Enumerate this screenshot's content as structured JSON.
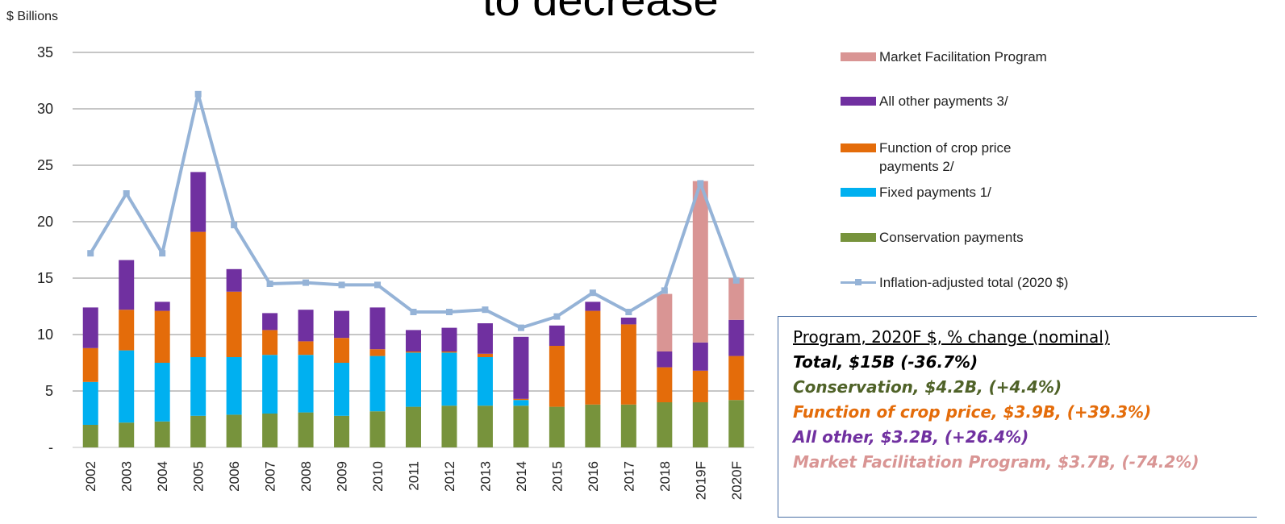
{
  "page": {
    "title": "to decrease",
    "unit_label": "$ Billions"
  },
  "colors": {
    "conservation": "#77933c",
    "fixed": "#00b0f0",
    "function_crop_price": "#e46c0a",
    "all_other": "#7030a0",
    "mfp": "#d99594",
    "inflation_line": "#95b3d7",
    "box_border": "#4a6fa5"
  },
  "chart_data": {
    "type": "bar",
    "stacked": true,
    "categories": [
      "2002",
      "2003",
      "2004",
      "2005",
      "2006",
      "2007",
      "2008",
      "2009",
      "2010",
      "2011",
      "2012",
      "2013",
      "2014",
      "2015",
      "2016",
      "2017",
      "2018",
      "2019F",
      "2020F"
    ],
    "ylim": [
      0,
      35
    ],
    "yticks": [
      0,
      5,
      10,
      15,
      20,
      25,
      30,
      35
    ],
    "ytick_labels": [
      "-",
      "5",
      "10",
      "15",
      "20",
      "25",
      "30",
      "35"
    ],
    "ylabel": "$ Billions",
    "grid": true,
    "legend_position": "right",
    "series": [
      {
        "key": "conservation",
        "name": "Conservation payments",
        "values": [
          2.0,
          2.2,
          2.3,
          2.8,
          2.9,
          3.0,
          3.1,
          2.8,
          3.2,
          3.6,
          3.7,
          3.7,
          3.7,
          3.6,
          3.8,
          3.8,
          4.0,
          4.0,
          4.2
        ]
      },
      {
        "key": "fixed",
        "name": "Fixed payments 1/",
        "values": [
          3.8,
          6.4,
          5.2,
          5.2,
          5.1,
          5.2,
          5.1,
          4.7,
          4.9,
          4.8,
          4.7,
          4.3,
          0.5,
          0,
          0,
          0,
          0,
          0,
          0
        ]
      },
      {
        "key": "function_crop_price",
        "name": "Function of crop price payments 2/",
        "values": [
          3.0,
          3.6,
          4.6,
          11.1,
          5.8,
          2.2,
          1.2,
          2.2,
          0.6,
          0.1,
          0.1,
          0.3,
          0.1,
          5.4,
          8.3,
          7.1,
          3.1,
          2.8,
          3.9
        ]
      },
      {
        "key": "all_other",
        "name": "All other payments 3/",
        "values": [
          3.6,
          4.4,
          0.8,
          5.3,
          2.0,
          1.5,
          2.8,
          2.4,
          3.7,
          1.9,
          2.1,
          2.7,
          5.5,
          1.8,
          0.8,
          0.6,
          1.4,
          2.5,
          3.2
        ]
      },
      {
        "key": "mfp",
        "name": "Market Facilitation Program",
        "values": [
          0,
          0,
          0,
          0,
          0,
          0,
          0,
          0,
          0,
          0,
          0,
          0,
          0,
          0,
          0,
          0,
          5.1,
          14.3,
          3.7
        ]
      },
      {
        "key": "inflation_line",
        "name": "Inflation-adjusted total (2020 $)",
        "type": "line",
        "values": [
          17.2,
          22.5,
          17.2,
          31.3,
          19.7,
          14.5,
          14.6,
          14.4,
          14.4,
          12.0,
          12.0,
          12.2,
          10.6,
          11.6,
          13.7,
          12.0,
          13.9,
          23.4,
          14.8
        ]
      }
    ]
  },
  "legend": [
    {
      "key": "mfp",
      "kind": "bar",
      "label": "Market Facilitation Program"
    },
    {
      "key": "all_other",
      "kind": "bar",
      "label": "All other payments 3/"
    },
    {
      "key": "function_crop_price",
      "kind": "bar",
      "label": "Function of crop price payments 2/"
    },
    {
      "key": "fixed",
      "kind": "bar",
      "label": "Fixed payments 1/"
    },
    {
      "key": "conservation",
      "kind": "bar",
      "label": "Conservation payments"
    },
    {
      "key": "inflation_line",
      "kind": "line",
      "label": "Inflation-adjusted total (2020 $)"
    }
  ],
  "summary": {
    "heading": "Program, 2020F $, % change (nominal)",
    "items": [
      {
        "text": "Total, $15B (-36.7%)",
        "color": "#000000"
      },
      {
        "text": "Conservation, $4.2B, (+4.4%)",
        "color": "#4f6228"
      },
      {
        "text": "Function of crop price, $3.9B,  (+39.3%)",
        "color": "#e46c0a"
      },
      {
        "text": "All other, $3.2B, (+26.4%)",
        "color": "#7030a0"
      },
      {
        "text": "Market Facilitation Program, $3.7B, (-74.2%)",
        "color": "#d99594"
      }
    ]
  }
}
